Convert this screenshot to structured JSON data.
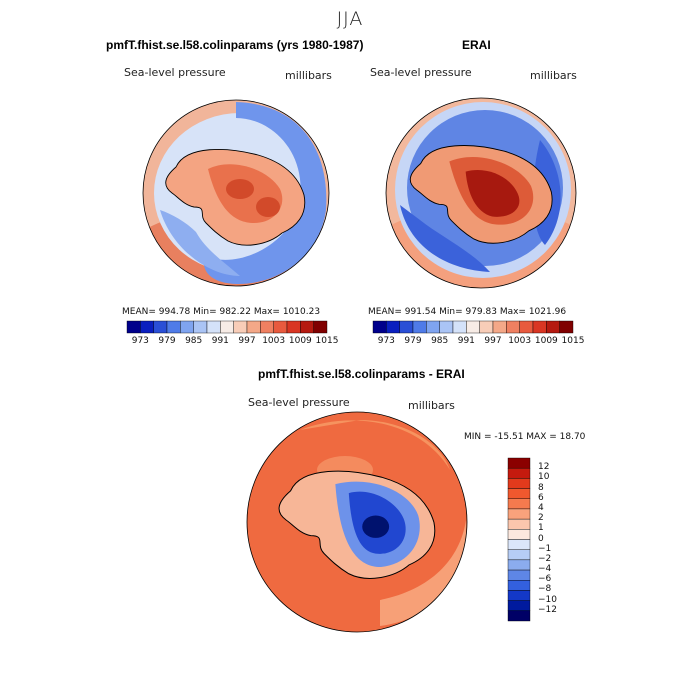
{
  "figure": {
    "title": "JJA"
  },
  "panels": {
    "model": {
      "title": "pmfT.fhist.se.l58.colinparams (yrs 1980-1987)",
      "variable": "Sea-level pressure",
      "units": "millibars",
      "stats": "MEAN= 994.78   Min= 982.22   Max= 1010.23"
    },
    "obs": {
      "title": "ERAI",
      "variable": "Sea-level pressure",
      "units": "millibars",
      "stats": "MEAN= 991.54   Min= 979.83   Max= 1021.96"
    },
    "diff": {
      "title": "pmfT.fhist.se.l58.colinparams - ERAI",
      "variable": "Sea-level pressure",
      "units": "millibars",
      "stats": "MIN = -15.51  MAX =  18.70"
    }
  },
  "colorbars": {
    "absolute_ticks": [
      "973",
      "979",
      "985",
      "991",
      "997",
      "1003",
      "1009",
      "1015"
    ],
    "absolute_colors": [
      "#00008b",
      "#0a1fbf",
      "#2a4fd6",
      "#4f7be8",
      "#7fa4f0",
      "#aac4f5",
      "#d4e2f9",
      "#f7ece6",
      "#f8cdb8",
      "#f4a888",
      "#ef8061",
      "#e85a3e",
      "#d93623",
      "#b51a10",
      "#800000"
    ],
    "diff_ticks": [
      "12",
      "10",
      "8",
      "6",
      "4",
      "2",
      "1",
      "0",
      "-1",
      "-2",
      "-4",
      "-6",
      "-8",
      "-10",
      "-12"
    ],
    "diff_colors": [
      "#8b0000",
      "#c51a0e",
      "#e23a1c",
      "#f0582e",
      "#f57a4e",
      "#f9a27c",
      "#fbc6ad",
      "#fce8de",
      "#dbe6fa",
      "#b6cdf5",
      "#8bacee",
      "#5e86e6",
      "#3360de",
      "#1338c8",
      "#001a9e",
      "#000066"
    ]
  },
  "chart_data": [
    {
      "type": "heatmap",
      "projection": "south-polar-stereographic",
      "title": "pmfT.fhist.se.l58.colinparams (yrs 1980-1987)",
      "variable": "Sea-level pressure",
      "units": "millibars",
      "mean": 994.78,
      "min": 982.22,
      "max": 1010.23,
      "levels": [
        973,
        979,
        985,
        991,
        997,
        1003,
        1009,
        1015
      ]
    },
    {
      "type": "heatmap",
      "projection": "south-polar-stereographic",
      "title": "ERAI",
      "variable": "Sea-level pressure",
      "units": "millibars",
      "mean": 991.54,
      "min": 979.83,
      "max": 1021.96,
      "levels": [
        973,
        979,
        985,
        991,
        997,
        1003,
        1009,
        1015
      ]
    },
    {
      "type": "heatmap",
      "projection": "south-polar-stereographic",
      "title": "pmfT.fhist.se.l58.colinparams - ERAI",
      "variable": "Sea-level pressure",
      "units": "millibars",
      "min": -15.51,
      "max": 18.7,
      "levels": [
        -12,
        -10,
        -8,
        -6,
        -4,
        -2,
        -1,
        0,
        1,
        2,
        4,
        6,
        8,
        10,
        12
      ]
    }
  ]
}
